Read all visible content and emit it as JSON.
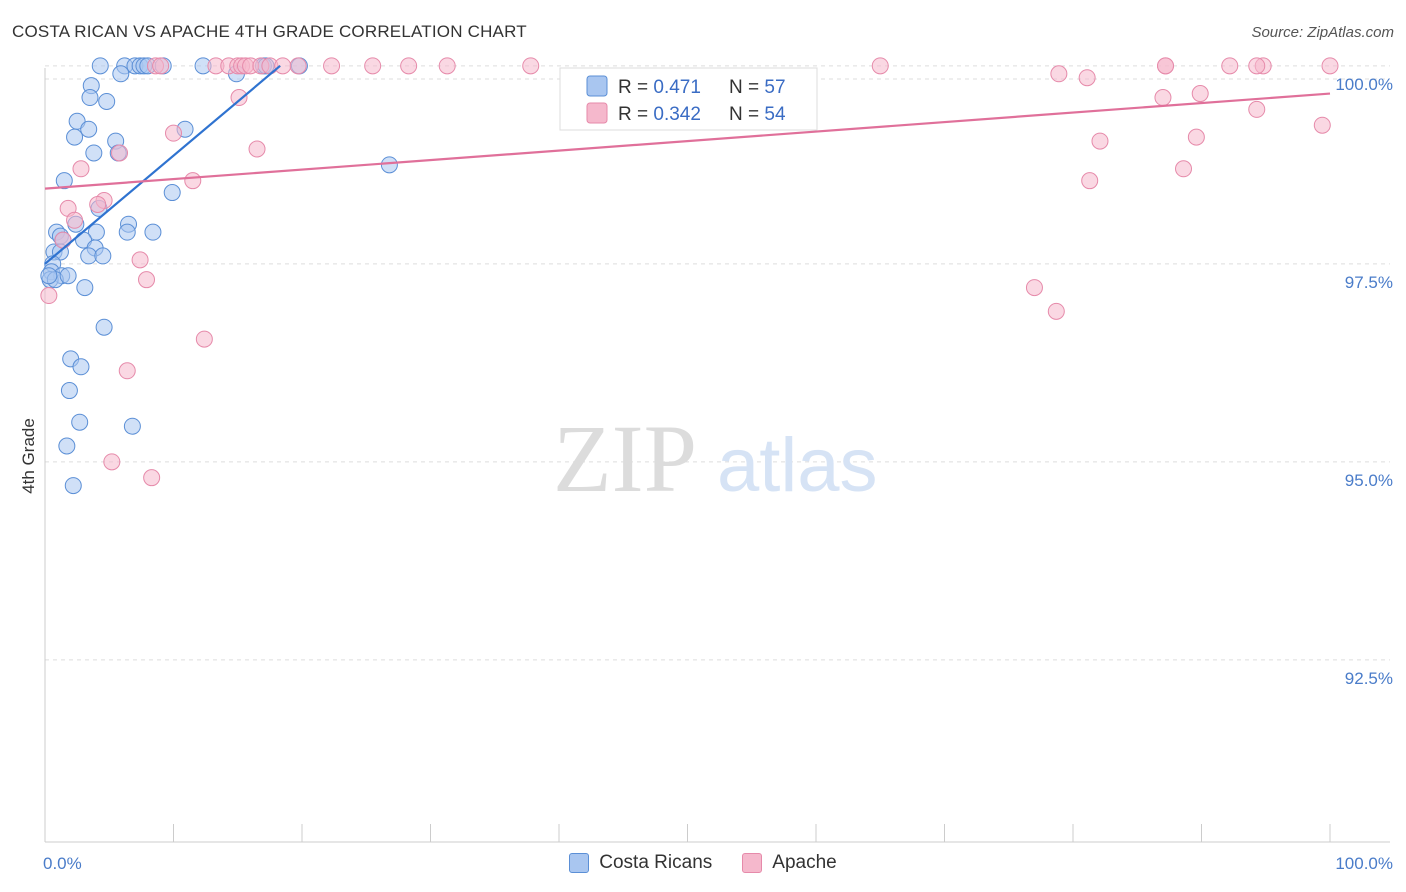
{
  "header": {
    "title": "COSTA RICAN VS APACHE 4TH GRADE CORRELATION CHART",
    "source": "Source: ZipAtlas.com"
  },
  "watermark": {
    "zip": "ZIP",
    "atlas": "atlas"
  },
  "colors": {
    "blue_fill": "#a9c6f0",
    "blue_stroke": "#5b8fd6",
    "blue_line": "#2f73d0",
    "pink_fill": "#f5b8cc",
    "pink_stroke": "#e68aaa",
    "pink_line": "#e0709a",
    "tick_label": "#4a7cc9",
    "grid": "#dddddd"
  },
  "legend": {
    "rows": [
      {
        "r_label": "R = ",
        "r_value": "0.471",
        "n_label": "N = ",
        "n_value": "57"
      },
      {
        "r_label": "R = ",
        "r_value": "0.342",
        "n_label": "N = ",
        "n_value": "54"
      }
    ]
  },
  "chart_data": {
    "type": "scatter",
    "title": "COSTA RICAN VS APACHE 4TH GRADE CORRELATION CHART",
    "xlabel": "",
    "ylabel": "4th Grade",
    "xlim": [
      0,
      100
    ],
    "ylim": [
      90.2,
      100.2
    ],
    "x_tick_labels": [
      "0.0%",
      "100.0%"
    ],
    "y_ticks": [
      {
        "value": 100.0,
        "label": "100.0%"
      },
      {
        "value": 97.5,
        "label": "97.5%"
      },
      {
        "value": 95.0,
        "label": "95.0%"
      },
      {
        "value": 92.5,
        "label": "92.5%"
      }
    ],
    "grid": true,
    "legend_position": "top-center",
    "series": [
      {
        "name": "Costa Ricans",
        "color": "#5b8fd6",
        "trend": {
          "x": [
            0,
            18.3
          ],
          "y": [
            97.5,
            100.0
          ]
        },
        "points": [
          [
            4.3,
            100.0
          ],
          [
            6.2,
            100.0
          ],
          [
            7.0,
            100.0
          ],
          [
            7.4,
            100.0
          ],
          [
            7.7,
            100.0
          ],
          [
            8.0,
            100.0
          ],
          [
            9.2,
            100.0
          ],
          [
            12.3,
            100.0
          ],
          [
            17.0,
            100.0
          ],
          [
            17.2,
            100.0
          ],
          [
            19.8,
            100.0
          ],
          [
            5.9,
            99.9
          ],
          [
            14.9,
            99.9
          ],
          [
            3.6,
            99.75
          ],
          [
            3.5,
            99.6
          ],
          [
            4.8,
            99.55
          ],
          [
            2.5,
            99.3
          ],
          [
            3.4,
            99.2
          ],
          [
            10.9,
            99.2
          ],
          [
            2.3,
            99.1
          ],
          [
            5.5,
            99.05
          ],
          [
            3.8,
            98.9
          ],
          [
            5.7,
            98.9
          ],
          [
            26.8,
            98.75
          ],
          [
            1.5,
            98.55
          ],
          [
            9.9,
            98.4
          ],
          [
            4.2,
            98.2
          ],
          [
            2.4,
            98.0
          ],
          [
            6.5,
            98.0
          ],
          [
            0.9,
            97.9
          ],
          [
            1.2,
            97.85
          ],
          [
            4.0,
            97.9
          ],
          [
            8.4,
            97.9
          ],
          [
            6.4,
            97.9
          ],
          [
            1.4,
            97.8
          ],
          [
            3.0,
            97.8
          ],
          [
            3.9,
            97.7
          ],
          [
            0.7,
            97.65
          ],
          [
            1.2,
            97.65
          ],
          [
            3.4,
            97.6
          ],
          [
            4.5,
            97.6
          ],
          [
            0.6,
            97.5
          ],
          [
            0.5,
            97.4
          ],
          [
            1.3,
            97.35
          ],
          [
            0.4,
            97.3
          ],
          [
            0.8,
            97.3
          ],
          [
            3.1,
            97.2
          ],
          [
            4.6,
            96.7
          ],
          [
            2.0,
            96.3
          ],
          [
            2.8,
            96.2
          ],
          [
            1.9,
            95.9
          ],
          [
            2.7,
            95.5
          ],
          [
            6.8,
            95.45
          ],
          [
            1.7,
            95.2
          ],
          [
            2.2,
            94.7
          ],
          [
            0.3,
            97.35
          ],
          [
            1.8,
            97.35
          ]
        ]
      },
      {
        "name": "Apache",
        "color": "#e68aaa",
        "trend": {
          "x": [
            0,
            100
          ],
          "y": [
            98.45,
            99.65
          ]
        },
        "points": [
          [
            8.6,
            100.0
          ],
          [
            9.0,
            100.0
          ],
          [
            13.3,
            100.0
          ],
          [
            14.3,
            100.0
          ],
          [
            15.0,
            100.0
          ],
          [
            15.3,
            100.0
          ],
          [
            15.6,
            100.0
          ],
          [
            16.0,
            100.0
          ],
          [
            16.8,
            100.0
          ],
          [
            17.5,
            100.0
          ],
          [
            18.5,
            100.0
          ],
          [
            19.7,
            100.0
          ],
          [
            22.3,
            100.0
          ],
          [
            25.5,
            100.0
          ],
          [
            28.3,
            100.0
          ],
          [
            31.3,
            100.0
          ],
          [
            37.8,
            100.0
          ],
          [
            65.0,
            100.0
          ],
          [
            87.2,
            100.0
          ],
          [
            92.2,
            100.0
          ],
          [
            94.8,
            100.0
          ],
          [
            100.0,
            100.0
          ],
          [
            94.3,
            100.0
          ],
          [
            87.2,
            100.0
          ],
          [
            78.9,
            99.9
          ],
          [
            81.1,
            99.85
          ],
          [
            89.9,
            99.65
          ],
          [
            87.0,
            99.6
          ],
          [
            15.1,
            99.6
          ],
          [
            94.3,
            99.45
          ],
          [
            99.4,
            99.25
          ],
          [
            10.0,
            99.15
          ],
          [
            82.1,
            99.05
          ],
          [
            89.6,
            99.1
          ],
          [
            16.5,
            98.95
          ],
          [
            5.8,
            98.9
          ],
          [
            2.8,
            98.7
          ],
          [
            88.6,
            98.7
          ],
          [
            81.3,
            98.55
          ],
          [
            11.5,
            98.55
          ],
          [
            4.6,
            98.3
          ],
          [
            1.8,
            98.2
          ],
          [
            4.1,
            98.25
          ],
          [
            2.3,
            98.05
          ],
          [
            1.4,
            97.8
          ],
          [
            7.4,
            97.55
          ],
          [
            7.9,
            97.3
          ],
          [
            77.0,
            97.2
          ],
          [
            78.7,
            96.9
          ],
          [
            12.4,
            96.55
          ],
          [
            6.4,
            96.15
          ],
          [
            5.2,
            95.0
          ],
          [
            8.3,
            94.8
          ],
          [
            0.3,
            97.1
          ]
        ]
      }
    ]
  }
}
